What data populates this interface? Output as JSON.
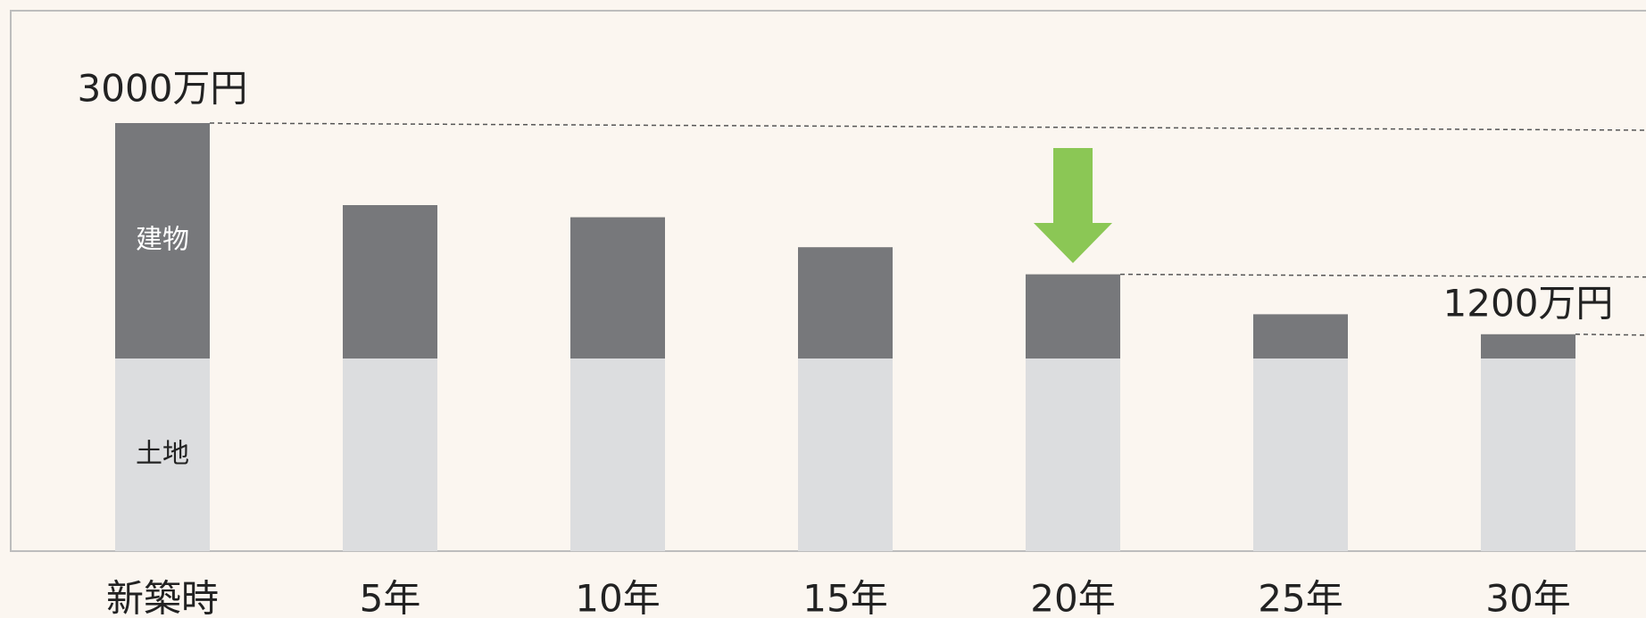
{
  "chart_data": {
    "type": "stacked_bar",
    "categories": [
      "新築時",
      "5年",
      "10年",
      "15年",
      "20年",
      "25年",
      "30年"
    ],
    "series": [
      {
        "name": "土地",
        "color": "#dcdddf",
        "values": [
          1350,
          1350,
          1350,
          1350,
          1350,
          1350,
          1350
        ]
      },
      {
        "name": "建物",
        "color": "#77787b",
        "values": [
          1650,
          1075,
          990,
          780,
          590,
          310,
          170
        ]
      }
    ],
    "ylim": [
      0,
      3000
    ],
    "annotations": [
      "3000万円",
      "1200万円"
    ]
  }
}
